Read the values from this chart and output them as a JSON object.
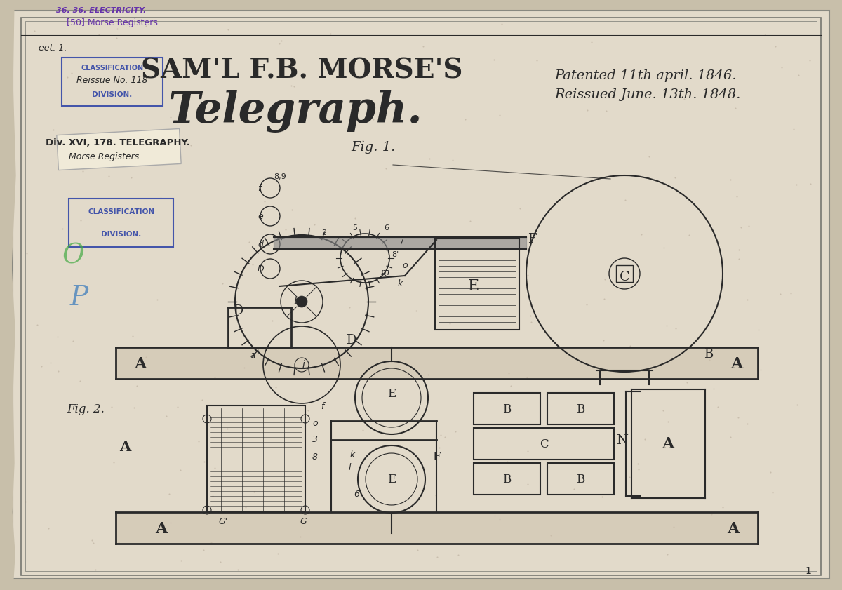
{
  "bg_color": "#c8bfaa",
  "paper_color": "#e2daca",
  "border_color": "#555555",
  "ink_color": "#2a2a2a",
  "stamp_blue": "#4455aa",
  "stamp_purple": "#6633aa",
  "title_main": "SAM'L F.B. MORSE'S",
  "title_sub": "Telegraph.",
  "patent_line1": "Patented 11th april. 1846.",
  "patent_line2": "Reissued June. 13th. 1848.",
  "top_text1": "36. 36. ELECTRICITY.",
  "top_text2": "[50] Morse Registers.",
  "sheet_text": "eet. 1.",
  "stamp1_line1": "CLASSIFICATION",
  "stamp1_line2": "Reissue No. 118",
  "stamp1_line3": "DIVISION.",
  "stamp2_line1": "Div. XVI, 178. TELEGRAPHY.",
  "stamp2_line2": "Morse Registers.",
  "stamp3_line1": "CLASSIFICATION",
  "stamp3_line2": "DIVISION.",
  "fig1_label": "Fig. 1.",
  "fig2_label": "Fig. 2.",
  "page_num": "1",
  "label_A": "A",
  "label_B": "B",
  "label_C": "C",
  "label_E": "E",
  "label_F": "F",
  "label_N": "N"
}
